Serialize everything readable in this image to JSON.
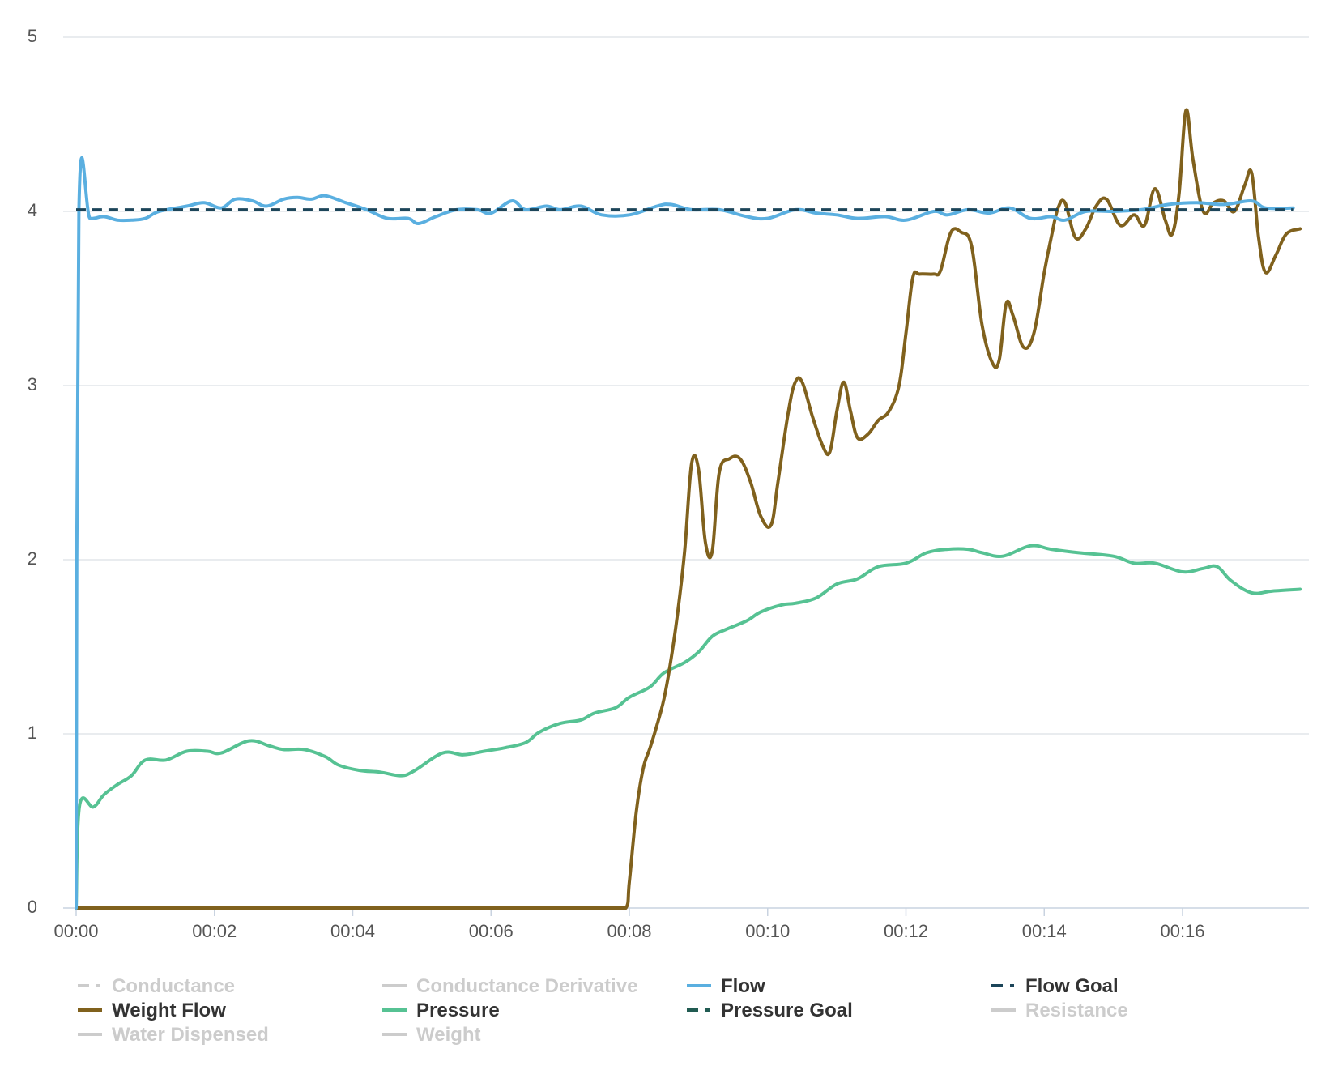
{
  "chart_data": {
    "type": "line",
    "title": "",
    "xlabel": "",
    "ylabel": "",
    "grid": true,
    "legend_position": "bottom",
    "x_unit": "seconds (mm:ss)",
    "xlim": [
      0,
      17.8
    ],
    "ylim": [
      0,
      5
    ],
    "x_ticks": [
      {
        "value": 0,
        "label": "00:00"
      },
      {
        "value": 2,
        "label": "00:02"
      },
      {
        "value": 4,
        "label": "00:04"
      },
      {
        "value": 6,
        "label": "00:06"
      },
      {
        "value": 8,
        "label": "00:08"
      },
      {
        "value": 10,
        "label": "00:10"
      },
      {
        "value": 12,
        "label": "00:12"
      },
      {
        "value": 14,
        "label": "00:14"
      },
      {
        "value": 16,
        "label": "00:16"
      }
    ],
    "y_ticks": [
      {
        "value": 0,
        "label": "0"
      },
      {
        "value": 1,
        "label": "1"
      },
      {
        "value": 2,
        "label": "2"
      },
      {
        "value": 3,
        "label": "3"
      },
      {
        "value": 4,
        "label": "4"
      },
      {
        "value": 5,
        "label": "5"
      }
    ],
    "series": [
      {
        "name": "Conductance",
        "visible": false,
        "color": "#cccccc",
        "dash": "dashdot",
        "points": []
      },
      {
        "name": "Conductance Derivative",
        "visible": false,
        "color": "#cccccc",
        "dash": "solid",
        "points": []
      },
      {
        "name": "Flow",
        "visible": true,
        "color": "#5aafe0",
        "dash": "solid",
        "points": [
          [
            0,
            0
          ],
          [
            0.04,
            4.0
          ],
          [
            0.2,
            3.96
          ],
          [
            0.4,
            3.97
          ],
          [
            0.6,
            3.95
          ],
          [
            0.8,
            3.95
          ],
          [
            1.0,
            3.96
          ],
          [
            1.2,
            4.0
          ],
          [
            1.6,
            4.03
          ],
          [
            1.85,
            4.05
          ],
          [
            2.1,
            4.02
          ],
          [
            2.3,
            4.07
          ],
          [
            2.55,
            4.06
          ],
          [
            2.75,
            4.03
          ],
          [
            3.0,
            4.07
          ],
          [
            3.2,
            4.08
          ],
          [
            3.4,
            4.07
          ],
          [
            3.6,
            4.09
          ],
          [
            3.9,
            4.05
          ],
          [
            4.2,
            4.01
          ],
          [
            4.5,
            3.96
          ],
          [
            4.8,
            3.96
          ],
          [
            4.95,
            3.93
          ],
          [
            5.2,
            3.97
          ],
          [
            5.5,
            4.01
          ],
          [
            5.8,
            4.01
          ],
          [
            6.0,
            3.99
          ],
          [
            6.3,
            4.06
          ],
          [
            6.5,
            4.01
          ],
          [
            6.8,
            4.03
          ],
          [
            7.0,
            4.01
          ],
          [
            7.3,
            4.03
          ],
          [
            7.6,
            3.98
          ],
          [
            8.0,
            3.98
          ],
          [
            8.4,
            4.03
          ],
          [
            8.6,
            4.04
          ],
          [
            8.9,
            4.01
          ],
          [
            9.3,
            4.01
          ],
          [
            9.7,
            3.97
          ],
          [
            10.0,
            3.96
          ],
          [
            10.4,
            4.01
          ],
          [
            10.7,
            3.99
          ],
          [
            11.0,
            3.98
          ],
          [
            11.3,
            3.96
          ],
          [
            11.7,
            3.97
          ],
          [
            12.0,
            3.95
          ],
          [
            12.4,
            4.0
          ],
          [
            12.6,
            3.98
          ],
          [
            12.9,
            4.01
          ],
          [
            13.2,
            3.99
          ],
          [
            13.5,
            4.02
          ],
          [
            13.8,
            3.96
          ],
          [
            14.1,
            3.97
          ],
          [
            14.3,
            3.95
          ],
          [
            14.6,
            4.0
          ],
          [
            15.0,
            4.0
          ],
          [
            15.4,
            4.01
          ],
          [
            15.8,
            4.04
          ],
          [
            16.2,
            4.05
          ],
          [
            16.6,
            4.04
          ],
          [
            17.0,
            4.06
          ],
          [
            17.2,
            4.02
          ],
          [
            17.6,
            4.02
          ]
        ]
      },
      {
        "name": "Flow Goal",
        "visible": true,
        "color": "#1c4559",
        "dash": "dashdot",
        "points": [
          [
            0,
            4.01
          ],
          [
            17.6,
            4.01
          ]
        ]
      },
      {
        "name": "Weight Flow",
        "visible": true,
        "color": "#80611d",
        "dash": "solid",
        "points": [
          [
            0,
            0
          ],
          [
            7.95,
            0
          ],
          [
            8.0,
            0.15
          ],
          [
            8.1,
            0.55
          ],
          [
            8.2,
            0.8
          ],
          [
            8.3,
            0.92
          ],
          [
            8.4,
            1.05
          ],
          [
            8.5,
            1.2
          ],
          [
            8.6,
            1.42
          ],
          [
            8.7,
            1.7
          ],
          [
            8.8,
            2.05
          ],
          [
            8.9,
            2.55
          ],
          [
            9.0,
            2.52
          ],
          [
            9.1,
            2.1
          ],
          [
            9.2,
            2.05
          ],
          [
            9.3,
            2.5
          ],
          [
            9.45,
            2.58
          ],
          [
            9.6,
            2.58
          ],
          [
            9.75,
            2.45
          ],
          [
            9.9,
            2.25
          ],
          [
            10.05,
            2.2
          ],
          [
            10.15,
            2.45
          ],
          [
            10.3,
            2.85
          ],
          [
            10.4,
            3.02
          ],
          [
            10.5,
            3.02
          ],
          [
            10.65,
            2.82
          ],
          [
            10.8,
            2.65
          ],
          [
            10.9,
            2.62
          ],
          [
            11.0,
            2.85
          ],
          [
            11.1,
            3.02
          ],
          [
            11.2,
            2.85
          ],
          [
            11.3,
            2.7
          ],
          [
            11.45,
            2.72
          ],
          [
            11.6,
            2.8
          ],
          [
            11.75,
            2.85
          ],
          [
            11.9,
            3.0
          ],
          [
            12.0,
            3.3
          ],
          [
            12.1,
            3.62
          ],
          [
            12.2,
            3.64
          ],
          [
            12.4,
            3.64
          ],
          [
            12.5,
            3.66
          ],
          [
            12.65,
            3.88
          ],
          [
            12.8,
            3.88
          ],
          [
            12.95,
            3.8
          ],
          [
            13.1,
            3.35
          ],
          [
            13.25,
            3.13
          ],
          [
            13.35,
            3.15
          ],
          [
            13.45,
            3.47
          ],
          [
            13.55,
            3.4
          ],
          [
            13.7,
            3.22
          ],
          [
            13.85,
            3.3
          ],
          [
            14.0,
            3.65
          ],
          [
            14.1,
            3.85
          ],
          [
            14.2,
            4.02
          ],
          [
            14.3,
            4.05
          ],
          [
            14.45,
            3.85
          ],
          [
            14.6,
            3.9
          ],
          [
            14.75,
            4.03
          ],
          [
            14.9,
            4.07
          ],
          [
            15.1,
            3.92
          ],
          [
            15.3,
            3.98
          ],
          [
            15.45,
            3.92
          ],
          [
            15.6,
            4.13
          ],
          [
            15.75,
            3.95
          ],
          [
            15.85,
            3.87
          ],
          [
            15.95,
            4.1
          ],
          [
            16.05,
            4.58
          ],
          [
            16.15,
            4.3
          ],
          [
            16.3,
            4.0
          ],
          [
            16.45,
            4.05
          ],
          [
            16.6,
            4.06
          ],
          [
            16.75,
            4.0
          ],
          [
            16.9,
            4.15
          ],
          [
            17.0,
            4.22
          ],
          [
            17.1,
            3.85
          ],
          [
            17.2,
            3.65
          ],
          [
            17.35,
            3.75
          ],
          [
            17.5,
            3.87
          ],
          [
            17.7,
            3.9
          ]
        ]
      },
      {
        "name": "Pressure",
        "visible": true,
        "color": "#56c293",
        "dash": "solid",
        "points": [
          [
            0,
            0
          ],
          [
            0.05,
            0.59
          ],
          [
            0.25,
            0.58
          ],
          [
            0.4,
            0.65
          ],
          [
            0.6,
            0.71
          ],
          [
            0.8,
            0.76
          ],
          [
            1.0,
            0.85
          ],
          [
            1.3,
            0.85
          ],
          [
            1.6,
            0.9
          ],
          [
            1.9,
            0.9
          ],
          [
            2.1,
            0.89
          ],
          [
            2.5,
            0.96
          ],
          [
            2.8,
            0.93
          ],
          [
            3.0,
            0.91
          ],
          [
            3.3,
            0.91
          ],
          [
            3.6,
            0.87
          ],
          [
            3.8,
            0.82
          ],
          [
            4.1,
            0.79
          ],
          [
            4.4,
            0.78
          ],
          [
            4.7,
            0.76
          ],
          [
            4.9,
            0.79
          ],
          [
            5.3,
            0.89
          ],
          [
            5.6,
            0.88
          ],
          [
            5.9,
            0.9
          ],
          [
            6.2,
            0.92
          ],
          [
            6.5,
            0.95
          ],
          [
            6.7,
            1.01
          ],
          [
            7.0,
            1.06
          ],
          [
            7.3,
            1.08
          ],
          [
            7.5,
            1.12
          ],
          [
            7.8,
            1.15
          ],
          [
            8.0,
            1.21
          ],
          [
            8.3,
            1.27
          ],
          [
            8.5,
            1.35
          ],
          [
            8.8,
            1.41
          ],
          [
            9.0,
            1.47
          ],
          [
            9.2,
            1.56
          ],
          [
            9.4,
            1.6
          ],
          [
            9.7,
            1.65
          ],
          [
            9.9,
            1.7
          ],
          [
            10.2,
            1.74
          ],
          [
            10.4,
            1.75
          ],
          [
            10.7,
            1.78
          ],
          [
            11.0,
            1.86
          ],
          [
            11.3,
            1.89
          ],
          [
            11.6,
            1.96
          ],
          [
            12.0,
            1.98
          ],
          [
            12.3,
            2.04
          ],
          [
            12.6,
            2.06
          ],
          [
            12.9,
            2.06
          ],
          [
            13.1,
            2.04
          ],
          [
            13.4,
            2.02
          ],
          [
            13.8,
            2.08
          ],
          [
            14.1,
            2.06
          ],
          [
            14.5,
            2.04
          ],
          [
            15.0,
            2.02
          ],
          [
            15.3,
            1.98
          ],
          [
            15.6,
            1.98
          ],
          [
            16.0,
            1.93
          ],
          [
            16.3,
            1.95
          ],
          [
            16.5,
            1.96
          ],
          [
            16.7,
            1.88
          ],
          [
            17.0,
            1.81
          ],
          [
            17.3,
            1.82
          ],
          [
            17.7,
            1.83
          ]
        ]
      },
      {
        "name": "Pressure Goal",
        "visible": true,
        "color": "#215b52",
        "dash": "dashdot",
        "points": []
      },
      {
        "name": "Resistance",
        "visible": false,
        "color": "#cccccc",
        "dash": "solid",
        "points": []
      },
      {
        "name": "Water Dispensed",
        "visible": false,
        "color": "#cccccc",
        "dash": "solid",
        "points": []
      },
      {
        "name": "Weight",
        "visible": false,
        "color": "#cccccc",
        "dash": "solid",
        "points": []
      }
    ]
  }
}
